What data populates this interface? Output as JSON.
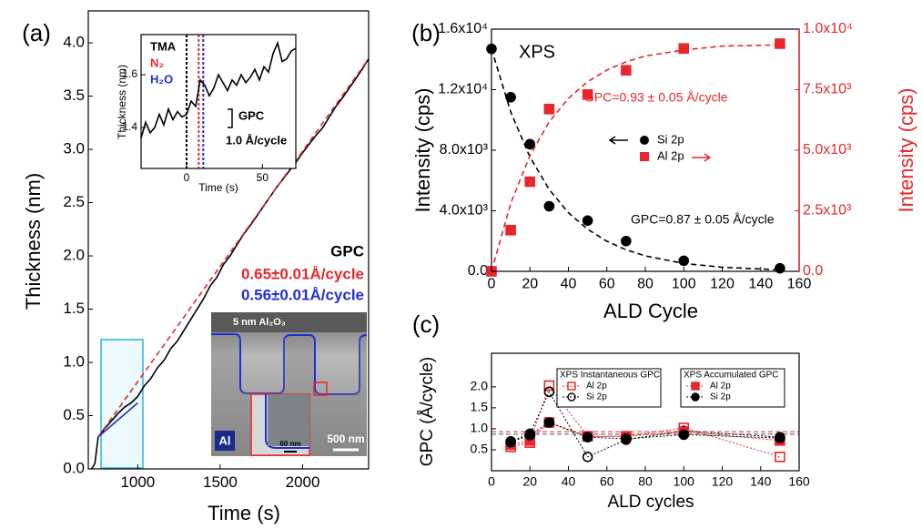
{
  "chart_data": [
    {
      "type": "line",
      "panel": "(a)",
      "x_label": "Time (s)",
      "y_label": "Thickness (nm)",
      "xlim": [
        700,
        2400
      ],
      "ylim": [
        0,
        4.3
      ],
      "xticks": [
        1000,
        1500,
        2000
      ],
      "yticks": [
        {
          "value": 0,
          "label": "0.0"
        },
        0.5,
        {
          "value": 1,
          "label": "1.0"
        },
        1.5,
        {
          "value": 2,
          "label": "2.0"
        },
        2.5,
        {
          "value": 3,
          "label": "3.0"
        },
        3.5,
        {
          "value": 4,
          "label": "4.0"
        }
      ],
      "series": [
        {
          "color": "#000000",
          "linestyle": "solid",
          "x": [
            720,
            740,
            760,
            800,
            840,
            880,
            920,
            960,
            1000,
            1040,
            1080,
            1120,
            1160,
            1200,
            1240,
            1280,
            1320,
            1360,
            1400,
            1440,
            1480,
            1520,
            1560,
            1600,
            1640,
            1680,
            1720,
            1760,
            1800,
            1840,
            1880,
            1920,
            1960,
            2000,
            2040,
            2080,
            2120,
            2160,
            2200,
            2240,
            2280,
            2320,
            2360,
            2400
          ],
          "values": [
            0.0,
            0.05,
            0.3,
            0.38,
            0.45,
            0.52,
            0.58,
            0.62,
            0.68,
            0.78,
            0.85,
            0.95,
            1.02,
            1.13,
            1.2,
            1.3,
            1.4,
            1.5,
            1.6,
            1.72,
            1.8,
            1.92,
            2.0,
            2.1,
            2.2,
            2.28,
            2.37,
            2.46,
            2.55,
            2.64,
            2.72,
            2.8,
            2.88,
            2.97,
            3.05,
            3.13,
            3.2,
            3.3,
            3.4,
            3.48,
            3.57,
            3.66,
            3.75,
            3.85
          ]
        },
        {
          "color": "#e8262b",
          "linestyle": "dashed",
          "x": [
            760,
            2400
          ],
          "values": [
            0.3,
            3.85
          ]
        },
        {
          "color": "#1f2fd6",
          "linestyle": "solid",
          "x": [
            760,
            1000
          ],
          "values": [
            0.3,
            0.62
          ]
        }
      ],
      "annotations": [
        {
          "text": "GPC",
          "color": "#000000"
        },
        {
          "text": "0.65±0.01Å/cycle",
          "color": "#e8262b"
        },
        {
          "text": "0.56±0.01Å/cycle",
          "color": "#1f2fd6"
        },
        {
          "text": "5 nm Al₂O₃",
          "color": "#ffffff"
        },
        {
          "text": "Al",
          "color": "#ffffff"
        },
        {
          "text": "60 nm",
          "color": "#000000"
        },
        {
          "text": "500 nm",
          "color": "#ffffff"
        }
      ]
    },
    {
      "type": "line",
      "x_label": "Time (s)",
      "y_label": "Thickness (nm)",
      "xlim": [
        -30,
        72
      ],
      "ylim": [
        1.245,
        1.752
      ],
      "xticks": [
        0,
        50
      ],
      "yticks": [
        1.4,
        1.6
      ],
      "series": [
        {
          "color": "#000000",
          "linestyle": "solid",
          "x": [
            -30,
            -27,
            -24,
            -21,
            -18,
            -15,
            -12,
            -9,
            -6,
            -3,
            0,
            3,
            6,
            9,
            12,
            15,
            18,
            21,
            24,
            27,
            30,
            33,
            36,
            39,
            42,
            45,
            48,
            51,
            54,
            57,
            60,
            63,
            66,
            69,
            72
          ],
          "values": [
            1.36,
            1.42,
            1.38,
            1.4,
            1.45,
            1.41,
            1.47,
            1.43,
            1.46,
            1.44,
            1.45,
            1.5,
            1.48,
            1.58,
            1.56,
            1.52,
            1.55,
            1.6,
            1.57,
            1.54,
            1.58,
            1.56,
            1.6,
            1.57,
            1.59,
            1.62,
            1.58,
            1.63,
            1.61,
            1.68,
            1.72,
            1.65,
            1.66,
            1.69,
            1.7
          ]
        }
      ],
      "vlines": [
        {
          "x": 0,
          "color": "#000000"
        },
        {
          "x": 8,
          "color": "#e8262b"
        },
        {
          "x": 11,
          "color": "#1f2fd6"
        }
      ],
      "annotations": [
        {
          "text": "TMA",
          "color": "#000000"
        },
        {
          "text": "N₂",
          "color": "#e8262b"
        },
        {
          "text": "H₂O",
          "color": "#1f2fd6"
        },
        {
          "text": "GPC",
          "color": "#000000"
        },
        {
          "text": "1.0 Å/cycle",
          "color": "#000000"
        }
      ]
    },
    {
      "type": "scatter",
      "panel": "(b)",
      "x_label": "ALD Cycle",
      "y_label": "Intensity (cps)",
      "y2_label": "Intensity (cps)",
      "y2_color": "#e8262b",
      "xlim": [
        0,
        160
      ],
      "ylim": [
        0,
        16000
      ],
      "y2lim": [
        0,
        10000
      ],
      "xticks": [
        0,
        20,
        40,
        60,
        80,
        100,
        120,
        140,
        160
      ],
      "yticks": [
        {
          "value": 0,
          "label": "0.0"
        },
        {
          "value": 4000,
          "label": "4.0x10³"
        },
        {
          "value": 8000,
          "label": "8.0x10³"
        },
        {
          "value": 12000,
          "label": "1.2x10⁴"
        },
        {
          "value": 16000,
          "label": "1.6x10⁴"
        }
      ],
      "y2ticks": [
        {
          "value": 0,
          "label": "0.0"
        },
        {
          "value": 2500,
          "label": "2.5x10³"
        },
        {
          "value": 5000,
          "label": "5.0x10³"
        },
        {
          "value": 7500,
          "label": "7.5x10³"
        },
        {
          "value": 10000,
          "label": "1.0x10⁴"
        }
      ],
      "series": [
        {
          "name": "Si 2p",
          "color": "#000000",
          "marker": "circle",
          "filled": true,
          "x": [
            0,
            10,
            20,
            30,
            50,
            70,
            100,
            150
          ],
          "values": [
            14700,
            11500,
            8400,
            4300,
            3350,
            2000,
            700,
            200
          ]
        },
        {
          "name": "Al 2p",
          "color": "#e8262b",
          "marker": "square",
          "filled": true,
          "axis": "y2",
          "x": [
            0,
            10,
            20,
            30,
            50,
            70,
            100,
            150
          ],
          "values": [
            0,
            1700,
            3700,
            6700,
            7300,
            8300,
            9200,
            9400
          ]
        },
        {
          "color": "#000000",
          "linestyle": "dashed",
          "x": [
            0,
            10,
            20,
            30,
            40,
            50,
            60,
            70,
            80,
            100,
            120,
            150
          ],
          "values": [
            14700,
            10530,
            7550,
            5410,
            3870,
            2780,
            1990,
            1420,
            1020,
            520,
            270,
            100
          ]
        },
        {
          "color": "#e8262b",
          "linestyle": "dashed",
          "axis": "y2",
          "x": [
            0,
            10,
            20,
            30,
            40,
            50,
            60,
            70,
            80,
            100,
            120,
            150
          ],
          "values": [
            0,
            2810,
            4780,
            6170,
            7140,
            7830,
            8310,
            8650,
            8890,
            9140,
            9300,
            9350
          ]
        }
      ],
      "annotations": [
        {
          "text": "XPS",
          "color": "#000000"
        },
        {
          "text": "GPC=0.93 ± 0.05 Å/cycle",
          "color": "#e8262b"
        },
        {
          "text": "GPC=0.87 ± 0.05  Å/cycle",
          "color": "#000000"
        }
      ]
    },
    {
      "type": "line",
      "panel": "(c)",
      "x_label": "ALD cycles",
      "y_label": "GPC (Å/cycle)",
      "xlim": [
        0,
        160
      ],
      "ylim": [
        0,
        2.8
      ],
      "xticks": [
        0,
        20,
        40,
        60,
        80,
        100,
        120,
        140,
        160
      ],
      "yticks": [
        0.5,
        {
          "value": 1,
          "label": "1.0"
        },
        1.5,
        {
          "value": 2,
          "label": "2.0"
        }
      ],
      "legend_titles": [
        "XPS Instantaneous GPC",
        "XPS Accumulated GPC"
      ],
      "hlines": [
        {
          "y": 0.93,
          "color": "#e8262b"
        },
        {
          "y": 0.87,
          "color": "#555555"
        }
      ],
      "series": [
        {
          "name": "Al 2p",
          "legend": 0,
          "color": "#e8262b",
          "marker": "square",
          "filled": false,
          "linestyle": "dotted",
          "x": [
            10,
            20,
            30,
            50,
            70,
            100,
            150
          ],
          "values": [
            0.57,
            0.67,
            2.03,
            0.82,
            0.82,
            1.02,
            0.33
          ]
        },
        {
          "name": "Si 2p",
          "legend": 0,
          "color": "#000000",
          "marker": "circle",
          "filled": false,
          "linestyle": "dotted",
          "x": [
            10,
            20,
            30,
            50,
            70,
            100,
            150
          ],
          "values": [
            0.7,
            0.88,
            1.88,
            0.33,
            0.74,
            0.95,
            0.8
          ]
        },
        {
          "name": "Al 2p",
          "legend": 1,
          "color": "#e8262b",
          "marker": "square",
          "filled": true,
          "linestyle": "dotted",
          "x": [
            10,
            20,
            30,
            50,
            70,
            100,
            150
          ],
          "values": [
            0.62,
            0.72,
            1.15,
            0.82,
            0.82,
            0.93,
            0.72
          ]
        },
        {
          "name": "Si 2p",
          "legend": 1,
          "color": "#000000",
          "marker": "circle",
          "filled": true,
          "linestyle": "dotted",
          "x": [
            10,
            20,
            30,
            50,
            70,
            100,
            150
          ],
          "values": [
            0.68,
            0.85,
            1.15,
            0.8,
            0.76,
            0.86,
            0.78
          ]
        }
      ]
    }
  ]
}
